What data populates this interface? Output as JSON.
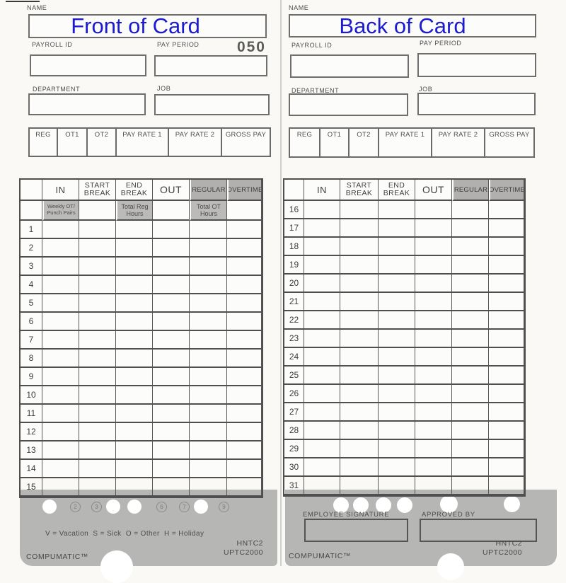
{
  "front": {
    "name_label": "NAME",
    "name_value": "Front of Card",
    "payroll_id_label": "PAYROLL ID",
    "pay_period_label": "PAY PERIOD",
    "card_number": "050",
    "department_label": "DEPARTMENT",
    "job_label": "JOB",
    "summary_columns": [
      "REG",
      "OT1",
      "OT2",
      "PAY RATE 1",
      "PAY RATE 2",
      "GROSS PAY"
    ],
    "table_columns": [
      "IN",
      "START BREAK",
      "END BREAK",
      "OUT",
      "REGULAR",
      "OVERTIME"
    ],
    "subheader_in": "Weekly OT/ Punch Pairs",
    "subheader_end_break": "Total Reg Hours",
    "subheader_regular": "Total OT Hours",
    "row_numbers": [
      "1",
      "2",
      "3",
      "4",
      "5",
      "6",
      "7",
      "8",
      "9",
      "10",
      "11",
      "12",
      "13",
      "14",
      "15"
    ],
    "punches": [
      {
        "n": "1",
        "punched": true
      },
      {
        "n": "2",
        "punched": false
      },
      {
        "n": "3",
        "punched": false
      },
      {
        "n": "4",
        "punched": true
      },
      {
        "n": "5",
        "punched": true
      },
      {
        "n": "6",
        "punched": false
      },
      {
        "n": "7",
        "punched": false
      },
      {
        "n": "8",
        "punched": true
      },
      {
        "n": "9",
        "punched": false
      }
    ],
    "legend": "V = Vacation  S = Sick  O = Other  H = Holiday",
    "brand": "COMPUMATIC™",
    "model_line1": "HNTC2",
    "model_line2": "UPTC2000"
  },
  "back": {
    "name_label": "NAME",
    "name_value": "Back of Card",
    "payroll_id_label": "PAYROLL ID",
    "pay_period_label": "PAY PERIOD",
    "department_label": "DEPARTMENT",
    "job_label": "JOB",
    "summary_columns": [
      "REG",
      "OT1",
      "OT2",
      "PAY RATE 1",
      "PAY RATE 2",
      "GROSS PAY"
    ],
    "table_columns": [
      "IN",
      "START BREAK",
      "END BREAK",
      "OUT",
      "REGULAR",
      "OVERTIME"
    ],
    "row_numbers": [
      "16",
      "17",
      "18",
      "19",
      "20",
      "21",
      "22",
      "23",
      "24",
      "25",
      "26",
      "27",
      "28",
      "29",
      "30",
      "31"
    ],
    "employee_signature_label": "EMPLOYEE SIGNATURE",
    "approved_by_label": "APPROVED BY",
    "brand": "COMPUMATIC™",
    "model_line1": "HNTC2",
    "model_line2": "UPTC2000"
  },
  "colors": {
    "accent_blue": "#1b1bd1",
    "footer_gray": "#b6b6b4",
    "header_cell_gray": "#b2b0ae"
  }
}
